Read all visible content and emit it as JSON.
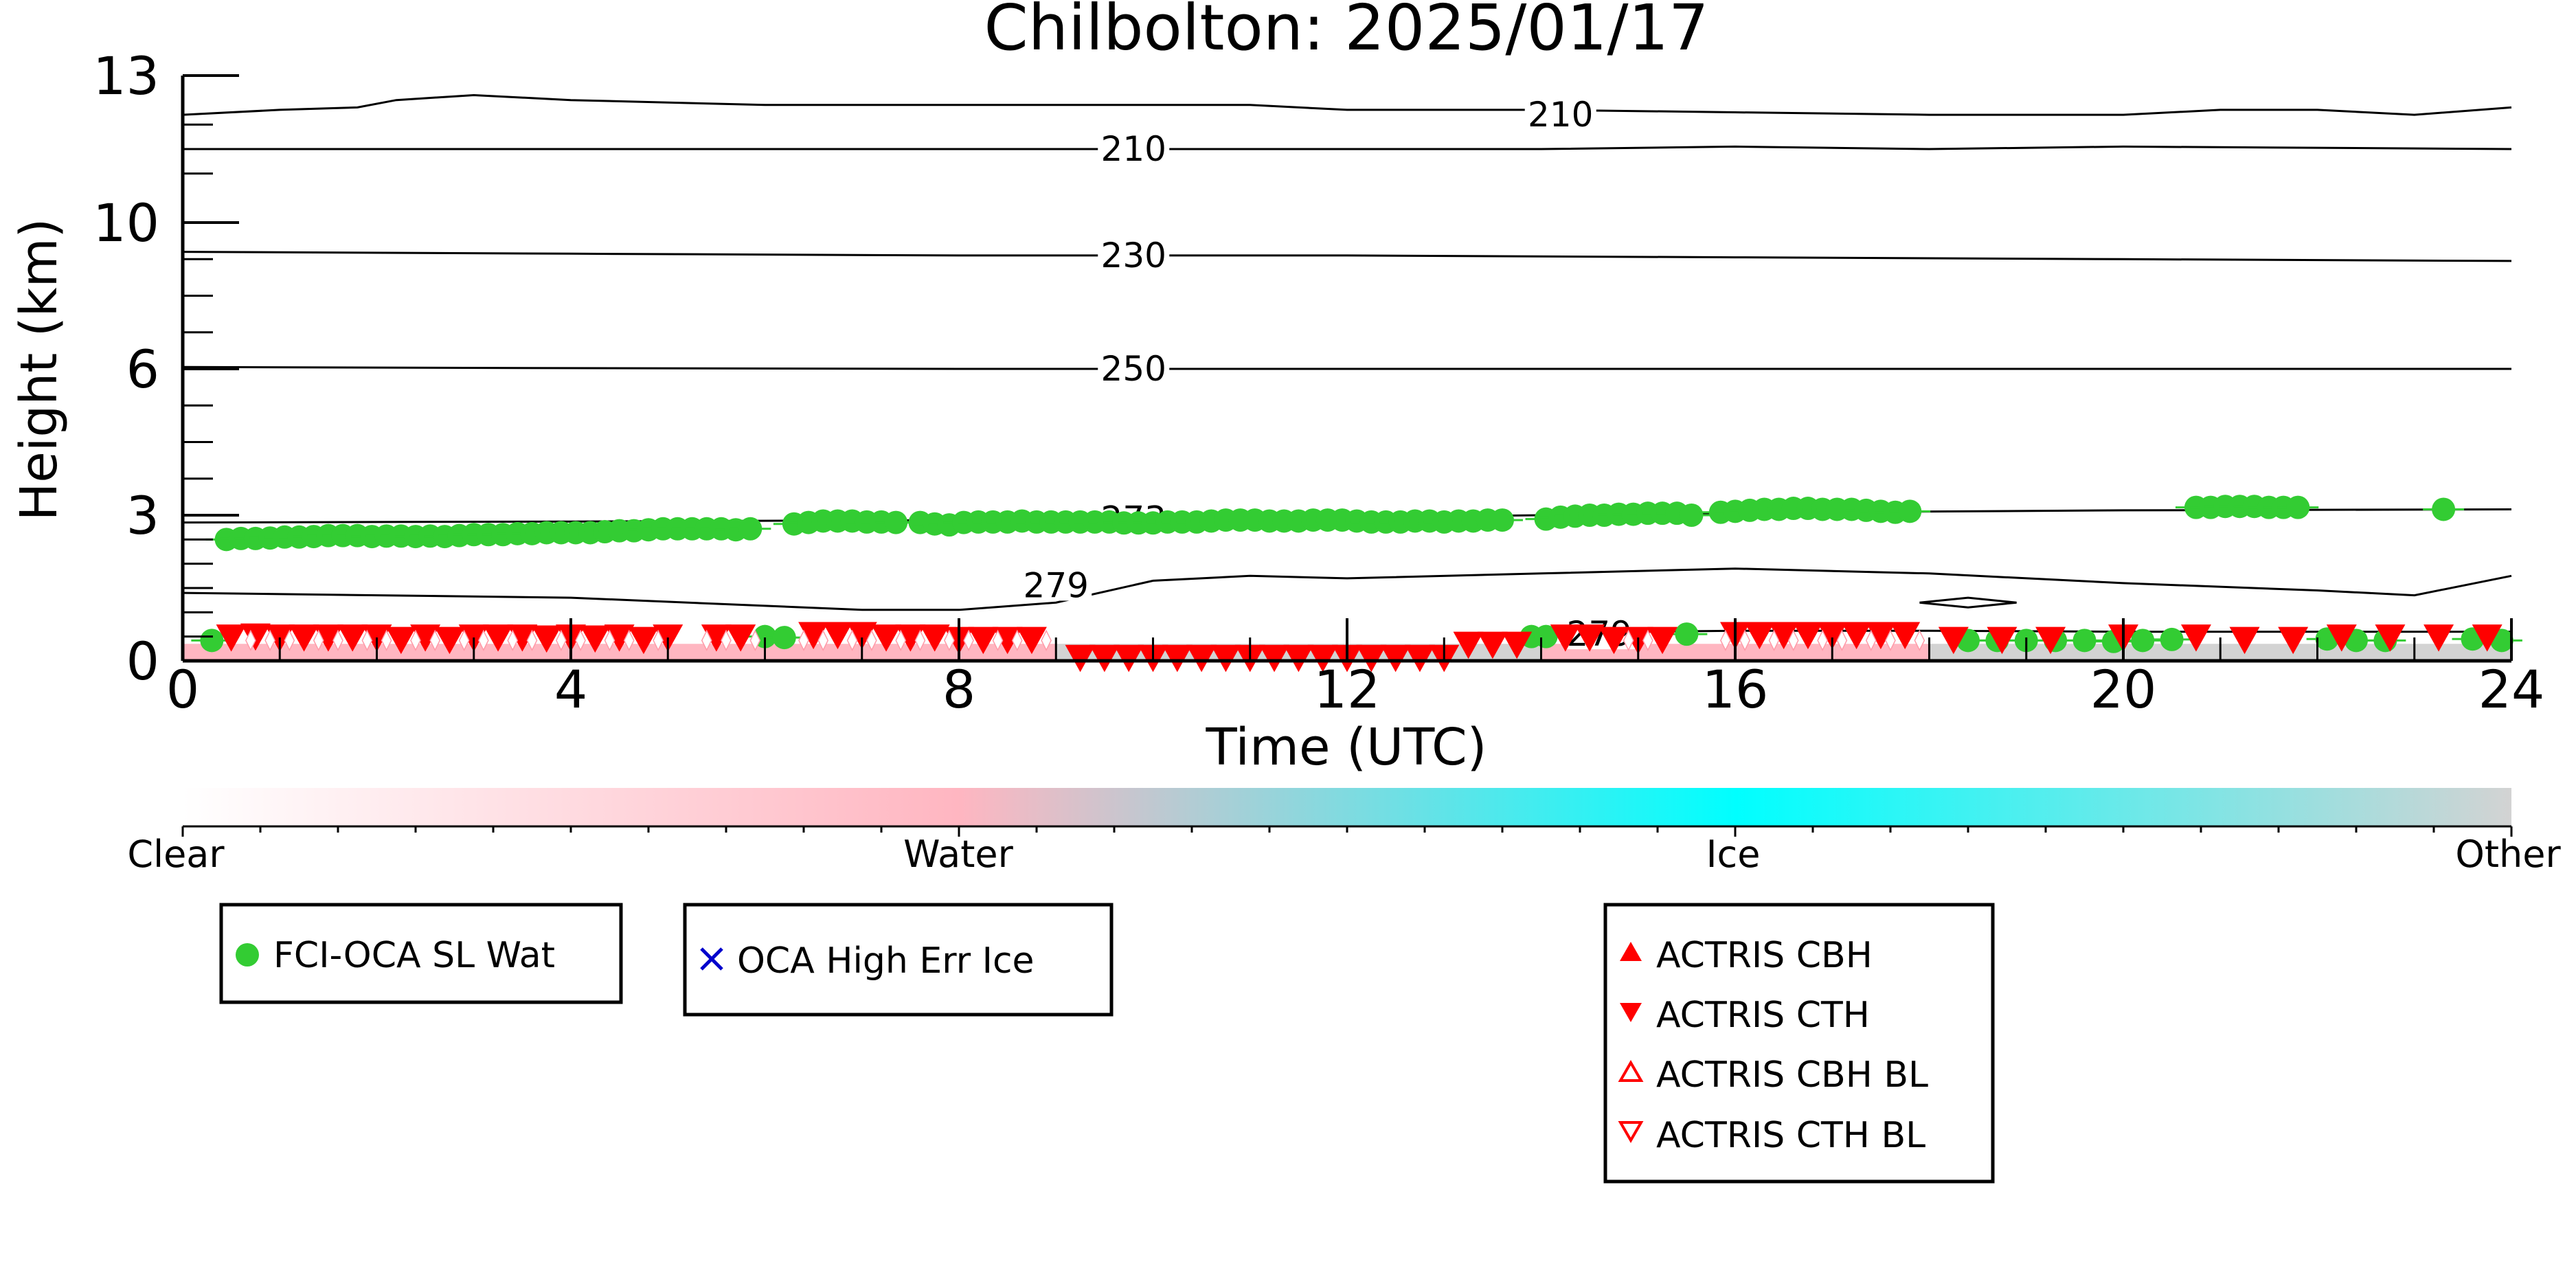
{
  "chart_data": {
    "type": "scatter",
    "title": "Chilbolton: 2025/01/17",
    "xlabel": "Time (UTC)",
    "ylabel": "Height (km)",
    "xlim": [
      0,
      24
    ],
    "ylim": [
      0,
      13
    ],
    "xticks": [
      0,
      4,
      8,
      12,
      16,
      20,
      24
    ],
    "yticks": [
      0,
      3,
      6,
      10,
      13
    ],
    "ytick_labels": [
      "0",
      "3",
      "6",
      "10",
      "13"
    ],
    "y_scale": "piecewise (0-3 km expanded)",
    "grid": false,
    "contours": [
      {
        "label": "210",
        "points": [
          [
            0,
            12.2
          ],
          [
            1,
            12.3
          ],
          [
            1.8,
            12.35
          ],
          [
            2.2,
            12.5
          ],
          [
            3,
            12.6
          ],
          [
            4,
            12.5
          ],
          [
            6,
            12.4
          ],
          [
            8,
            12.4
          ],
          [
            10,
            12.4
          ],
          [
            11,
            12.4
          ],
          [
            12,
            12.3
          ],
          [
            14,
            12.3
          ],
          [
            16,
            12.25
          ],
          [
            18,
            12.2
          ],
          [
            20,
            12.2
          ],
          [
            21,
            12.3
          ],
          [
            22,
            12.3
          ],
          [
            23,
            12.2
          ],
          [
            24,
            12.35
          ]
        ],
        "label_at": [
          14.2,
          12.2
        ]
      },
      {
        "label": "210",
        "points": [
          [
            0,
            11.5
          ],
          [
            4,
            11.5
          ],
          [
            8,
            11.5
          ],
          [
            12,
            11.5
          ],
          [
            14,
            11.5
          ],
          [
            16,
            11.55
          ],
          [
            18,
            11.5
          ],
          [
            20,
            11.55
          ],
          [
            24,
            11.5
          ]
        ],
        "label_at": [
          9.8,
          11.5
        ]
      },
      {
        "label": "230",
        "points": [
          [
            0,
            9.2
          ],
          [
            4,
            9.15
          ],
          [
            8,
            9.1
          ],
          [
            12,
            9.1
          ],
          [
            16,
            9.05
          ],
          [
            20,
            9.0
          ],
          [
            24,
            8.95
          ]
        ],
        "label_at": [
          9.8,
          9.1
        ]
      },
      {
        "label": "250",
        "points": [
          [
            0,
            6.05
          ],
          [
            4,
            6.02
          ],
          [
            8,
            6.0
          ],
          [
            12,
            6.0
          ],
          [
            16,
            6.0
          ],
          [
            20,
            6.0
          ],
          [
            24,
            6.0
          ]
        ],
        "label_at": [
          9.8,
          6.0
        ]
      },
      {
        "label": "273",
        "points": [
          [
            0,
            2.85
          ],
          [
            4,
            2.87
          ],
          [
            8,
            2.9
          ],
          [
            12,
            2.95
          ],
          [
            16,
            3.05
          ],
          [
            20,
            3.1
          ],
          [
            24,
            3.12
          ]
        ],
        "label_at": [
          9.8,
          2.92
        ]
      },
      {
        "label": "279",
        "points": [
          [
            0,
            1.4
          ],
          [
            4,
            1.3
          ],
          [
            7,
            1.05
          ],
          [
            8,
            1.05
          ],
          [
            9,
            1.2
          ],
          [
            10,
            1.65
          ],
          [
            11,
            1.75
          ],
          [
            12,
            1.7
          ],
          [
            14,
            1.8
          ],
          [
            16,
            1.9
          ],
          [
            18,
            1.8
          ],
          [
            20,
            1.6
          ],
          [
            22,
            1.45
          ],
          [
            23,
            1.35
          ],
          [
            24,
            1.75
          ]
        ],
        "label_at": [
          9.0,
          1.55
        ]
      },
      {
        "label": "279",
        "points": [
          [
            14.1,
            0.6
          ],
          [
            15.0,
            0.6
          ],
          [
            16,
            0.62
          ],
          [
            18,
            0.62
          ],
          [
            20,
            0.6
          ],
          [
            24,
            0.6
          ]
        ],
        "label_at": [
          14.6,
          0.55
        ]
      },
      {
        "label": "",
        "points": [
          [
            17.9,
            1.2
          ],
          [
            18.4,
            1.3
          ],
          [
            18.9,
            1.2
          ],
          [
            18.4,
            1.1
          ],
          [
            17.9,
            1.2
          ]
        ],
        "label_at": null
      }
    ],
    "series": [
      {
        "name": "FCI-OCA SL Wat",
        "marker": "filled-circle",
        "color": "#33cc33",
        "x": [
          0.45,
          0.6,
          0.75,
          0.9,
          1.05,
          1.2,
          1.35,
          1.5,
          1.65,
          1.8,
          1.95,
          2.1,
          2.25,
          2.4,
          2.55,
          2.7,
          2.85,
          3.0,
          3.15,
          3.3,
          3.45,
          3.6,
          3.75,
          3.9,
          4.05,
          4.2,
          4.35,
          4.5,
          4.65,
          4.8,
          4.95,
          5.1,
          5.25,
          5.4,
          5.55,
          5.7,
          5.85,
          6.3,
          6.45,
          6.6,
          6.75,
          6.9,
          7.05,
          7.2,
          7.35,
          7.6,
          7.75,
          7.9,
          8.05,
          8.2,
          8.35,
          8.5,
          8.65,
          8.8,
          8.95,
          9.1,
          9.25,
          9.4,
          9.55,
          9.7,
          9.85,
          10.0,
          10.15,
          10.3,
          10.45,
          10.6,
          10.75,
          10.9,
          11.05,
          11.2,
          11.35,
          11.5,
          11.65,
          11.8,
          11.95,
          12.1,
          12.25,
          12.4,
          12.55,
          12.7,
          12.85,
          13.0,
          13.15,
          13.3,
          13.45,
          13.6,
          14.05,
          14.2,
          14.35,
          14.5,
          14.65,
          14.8,
          14.95,
          15.1,
          15.25,
          15.4,
          15.55,
          15.85,
          16.0,
          16.15,
          16.3,
          16.45,
          16.6,
          16.75,
          16.9,
          17.05,
          17.2,
          17.35,
          17.5,
          17.65,
          17.8,
          20.75,
          20.9,
          21.05,
          21.2,
          21.35,
          21.5,
          21.65,
          21.8,
          23.3,
          0.3,
          6.0,
          6.2,
          13.9,
          14.05,
          15.5,
          18.4,
          18.7,
          19.0,
          19.3,
          19.6,
          19.9,
          20.2,
          20.5,
          22.1,
          22.4,
          22.7,
          23.6,
          23.9
        ],
        "y": [
          2.5,
          2.52,
          2.52,
          2.53,
          2.55,
          2.55,
          2.56,
          2.58,
          2.58,
          2.58,
          2.56,
          2.57,
          2.57,
          2.56,
          2.57,
          2.56,
          2.58,
          2.6,
          2.6,
          2.6,
          2.62,
          2.62,
          2.64,
          2.64,
          2.64,
          2.64,
          2.66,
          2.68,
          2.68,
          2.7,
          2.72,
          2.72,
          2.72,
          2.72,
          2.72,
          2.7,
          2.72,
          2.82,
          2.85,
          2.88,
          2.88,
          2.88,
          2.86,
          2.86,
          2.85,
          2.85,
          2.82,
          2.8,
          2.85,
          2.86,
          2.86,
          2.86,
          2.88,
          2.86,
          2.86,
          2.86,
          2.86,
          2.86,
          2.86,
          2.84,
          2.84,
          2.84,
          2.86,
          2.86,
          2.86,
          2.88,
          2.9,
          2.9,
          2.9,
          2.88,
          2.88,
          2.88,
          2.9,
          2.9,
          2.9,
          2.88,
          2.86,
          2.86,
          2.86,
          2.88,
          2.88,
          2.86,
          2.88,
          2.88,
          2.9,
          2.9,
          2.92,
          2.96,
          2.98,
          3.0,
          3.0,
          3.02,
          3.02,
          3.04,
          3.04,
          3.04,
          3.0,
          3.06,
          3.08,
          3.1,
          3.12,
          3.12,
          3.14,
          3.14,
          3.12,
          3.12,
          3.12,
          3.1,
          3.08,
          3.06,
          3.08,
          3.16,
          3.16,
          3.18,
          3.18,
          3.18,
          3.16,
          3.16,
          3.16,
          3.12,
          0.42,
          0.5,
          0.48,
          0.5,
          0.5,
          0.55,
          0.42,
          0.42,
          0.42,
          0.42,
          0.42,
          0.4,
          0.42,
          0.44,
          0.45,
          0.42,
          0.42,
          0.45,
          0.42
        ]
      },
      {
        "name": "OCA High Err Ice",
        "marker": "x",
        "color": "#0000cc",
        "x": [],
        "y": []
      },
      {
        "name": "ACTRIS CBH",
        "marker": "filled-triangle-up",
        "color": "#ff0000",
        "x": [],
        "y": []
      },
      {
        "name": "ACTRIS CTH",
        "marker": "filled-triangle-down",
        "color": "#ff0000",
        "x": [
          0.5,
          0.75,
          1.0,
          1.25,
          1.5,
          1.75,
          2.0,
          2.25,
          2.5,
          2.75,
          3.0,
          3.25,
          3.5,
          3.75,
          4.0,
          4.25,
          4.5,
          4.75,
          5.0,
          5.5,
          5.75,
          6.5,
          6.75,
          7.0,
          7.25,
          7.5,
          7.75,
          8.0,
          8.25,
          8.5,
          8.75,
          9.25,
          9.5,
          9.75,
          10.0,
          10.25,
          10.5,
          10.75,
          11.0,
          11.25,
          11.5,
          11.75,
          12.0,
          12.25,
          12.5,
          12.75,
          13.0,
          13.25,
          13.5,
          13.75,
          14.25,
          14.5,
          14.75,
          15.0,
          15.25,
          16.0,
          16.25,
          16.5,
          16.75,
          17.0,
          17.25,
          17.5,
          17.75,
          18.25,
          18.75,
          19.25,
          20.0,
          20.75,
          21.25,
          21.75,
          22.25,
          22.75,
          23.25,
          23.75
        ],
        "y": [
          0.5,
          0.52,
          0.5,
          0.5,
          0.5,
          0.5,
          0.5,
          0.45,
          0.5,
          0.45,
          0.5,
          0.5,
          0.5,
          0.48,
          0.5,
          0.48,
          0.5,
          0.45,
          0.5,
          0.5,
          0.5,
          0.55,
          0.55,
          0.55,
          0.5,
          0.5,
          0.5,
          0.45,
          0.45,
          0.45,
          0.45,
          0.08,
          0.08,
          0.08,
          0.08,
          0.08,
          0.08,
          0.08,
          0.08,
          0.08,
          0.08,
          0.08,
          0.08,
          0.08,
          0.08,
          0.08,
          0.08,
          0.35,
          0.35,
          0.35,
          0.5,
          0.5,
          0.45,
          0.45,
          0.45,
          0.55,
          0.55,
          0.55,
          0.55,
          0.55,
          0.55,
          0.55,
          0.55,
          0.45,
          0.45,
          0.45,
          0.5,
          0.5,
          0.45,
          0.45,
          0.5,
          0.5,
          0.5,
          0.5
        ]
      },
      {
        "name": "ACTRIS CBH BL",
        "marker": "open-triangle-up",
        "color": "#ff0000",
        "x": [],
        "y": []
      },
      {
        "name": "ACTRIS CTH BL",
        "marker": "open-triangle-down",
        "color": "#ff0000",
        "x": [],
        "y": []
      }
    ],
    "diamonds_x": [
      0.7,
      0.9,
      1.1,
      1.4,
      1.6,
      1.9,
      2.1,
      2.4,
      2.6,
      2.9,
      3.1,
      3.4,
      3.6,
      3.9,
      4.1,
      4.4,
      4.6,
      4.9,
      5.4,
      5.6,
      5.9,
      6.4,
      6.6,
      6.9,
      7.1,
      7.4,
      7.6,
      7.9,
      8.1,
      8.4,
      8.6,
      8.9,
      14.9,
      15.1,
      15.9,
      16.1,
      16.4,
      16.6,
      16.9,
      17.1,
      17.4,
      17.6,
      17.9
    ],
    "phase_strip": {
      "segments": [
        {
          "from": 0.0,
          "to": 9.0,
          "phase": "Water"
        },
        {
          "from": 9.0,
          "to": 14.0,
          "phase": "Other"
        },
        {
          "from": 14.0,
          "to": 18.0,
          "phase": "Water"
        },
        {
          "from": 18.0,
          "to": 24.0,
          "phase": "Other"
        }
      ]
    },
    "colorbar": {
      "labels": [
        "Clear",
        "Water",
        "Ice",
        "Other"
      ],
      "colors": [
        "#ffffff",
        "#ffb6c1",
        "#00ffff",
        "#d3d3d3"
      ]
    },
    "legends": [
      {
        "entries": [
          {
            "label": "FCI-OCA SL Wat",
            "marker": "filled-circle",
            "color": "#33cc33"
          }
        ]
      },
      {
        "entries": [
          {
            "label": "OCA High Err Ice",
            "marker": "x",
            "color": "#0000cc"
          }
        ]
      },
      {
        "entries": [
          {
            "label": "ACTRIS CBH",
            "marker": "filled-triangle-up",
            "color": "#ff0000"
          },
          {
            "label": "ACTRIS CTH",
            "marker": "filled-triangle-down",
            "color": "#ff0000"
          },
          {
            "label": "ACTRIS CBH BL",
            "marker": "open-triangle-up",
            "color": "#ff0000"
          },
          {
            "label": "ACTRIS CTH BL",
            "marker": "open-triangle-down",
            "color": "#ff0000"
          }
        ]
      }
    ]
  }
}
